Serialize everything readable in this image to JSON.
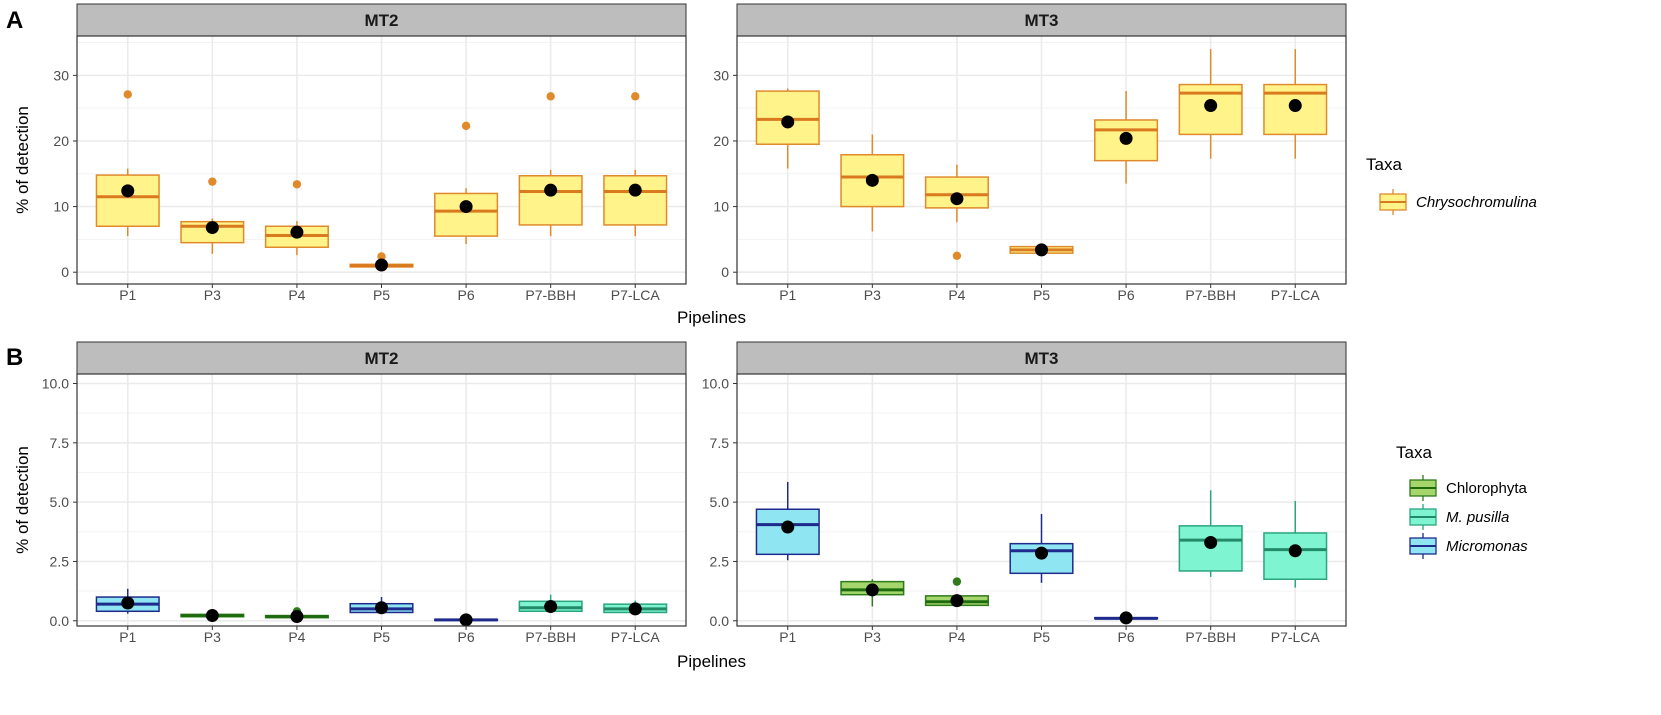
{
  "colors": {
    "chryso_fill": "#fff38a",
    "chryso_line": "#e08a2c",
    "chryso_median": "#d97a1f",
    "chlor_fill": "#a4d66b",
    "chlor_line": "#2f7a1a",
    "chlor_median": "#1e6b10",
    "mpus_fill": "#7ef4d1",
    "mpus_line": "#2aa57f",
    "mpus_median": "#238a68",
    "micro_fill": "#8fe6f2",
    "micro_line": "#1e2a8c",
    "micro_median": "#1e2a8c",
    "strip_bg": "#bdbdbd",
    "grid": "#ebebeb",
    "mean_dot": "#000000"
  },
  "x_label": "Pipelines",
  "y_label": "% of detection",
  "chart_data": [
    {
      "type": "boxplot",
      "panel": "A",
      "facets": [
        "MT2",
        "MT3"
      ],
      "categories": [
        "P1",
        "P3",
        "P4",
        "P5",
        "P6",
        "P7-BBH",
        "P7-LCA"
      ],
      "xlabel": "Pipelines",
      "ylabel": "% of detection",
      "ylim": [
        -1.8,
        36
      ],
      "yticks": [
        0,
        10,
        20,
        30
      ],
      "legend": {
        "title": "Taxa",
        "entries": [
          {
            "key": "chryso",
            "label": "Chrysochromulina",
            "italic": true
          }
        ]
      },
      "boxes": [
        {
          "facet": 0,
          "cat": 0,
          "taxon": "chryso",
          "lower_whisker": 5.5,
          "q1": 7,
          "median": 11.5,
          "q3": 14.8,
          "upper_whisker": 15.8,
          "mean": 12.4,
          "outliers": [
            27.1
          ]
        },
        {
          "facet": 0,
          "cat": 1,
          "taxon": "chryso",
          "lower_whisker": 2.8,
          "q1": 4.5,
          "median": 7,
          "q3": 7.7,
          "upper_whisker": 8.2,
          "mean": 6.8,
          "outliers": [
            13.8
          ]
        },
        {
          "facet": 0,
          "cat": 2,
          "taxon": "chryso",
          "lower_whisker": 2.6,
          "q1": 3.8,
          "median": 5.6,
          "q3": 7,
          "upper_whisker": 7.8,
          "mean": 6.1,
          "outliers": [
            13.4
          ]
        },
        {
          "facet": 0,
          "cat": 3,
          "taxon": "chryso",
          "lower_whisker": 0.6,
          "q1": 0.8,
          "median": 1,
          "q3": 1.2,
          "upper_whisker": 1.3,
          "mean": 1.1,
          "outliers": [
            2.4
          ]
        },
        {
          "facet": 0,
          "cat": 4,
          "taxon": "chryso",
          "lower_whisker": 4.3,
          "q1": 5.5,
          "median": 9.3,
          "q3": 12,
          "upper_whisker": 12.8,
          "mean": 10,
          "outliers": [
            22.3
          ]
        },
        {
          "facet": 0,
          "cat": 5,
          "taxon": "chryso",
          "lower_whisker": 5.5,
          "q1": 7.2,
          "median": 12.3,
          "q3": 14.7,
          "upper_whisker": 15.6,
          "mean": 12.5,
          "outliers": [
            26.8
          ]
        },
        {
          "facet": 0,
          "cat": 6,
          "taxon": "chryso",
          "lower_whisker": 5.5,
          "q1": 7.2,
          "median": 12.3,
          "q3": 14.7,
          "upper_whisker": 15.6,
          "mean": 12.5,
          "outliers": [
            26.8
          ]
        },
        {
          "facet": 1,
          "cat": 0,
          "taxon": "chryso",
          "lower_whisker": 15.8,
          "q1": 19.5,
          "median": 23.3,
          "q3": 27.6,
          "upper_whisker": 28,
          "mean": 22.9,
          "outliers": []
        },
        {
          "facet": 1,
          "cat": 1,
          "taxon": "chryso",
          "lower_whisker": 6.2,
          "q1": 10,
          "median": 14.5,
          "q3": 17.9,
          "upper_whisker": 21,
          "mean": 14,
          "outliers": []
        },
        {
          "facet": 1,
          "cat": 2,
          "taxon": "chryso",
          "lower_whisker": 7.6,
          "q1": 9.8,
          "median": 11.8,
          "q3": 14.5,
          "upper_whisker": 16.4,
          "mean": 11.2,
          "outliers": [
            2.5
          ]
        },
        {
          "facet": 1,
          "cat": 3,
          "taxon": "chryso",
          "lower_whisker": 2.8,
          "q1": 2.9,
          "median": 3.4,
          "q3": 3.9,
          "upper_whisker": 4,
          "mean": 3.4,
          "outliers": []
        },
        {
          "facet": 1,
          "cat": 4,
          "taxon": "chryso",
          "lower_whisker": 13.5,
          "q1": 17,
          "median": 21.7,
          "q3": 23.2,
          "upper_whisker": 27.6,
          "mean": 20.4,
          "outliers": []
        },
        {
          "facet": 1,
          "cat": 5,
          "taxon": "chryso",
          "lower_whisker": 17.3,
          "q1": 21,
          "median": 27.3,
          "q3": 28.6,
          "upper_whisker": 34,
          "mean": 25.4,
          "outliers": []
        },
        {
          "facet": 1,
          "cat": 6,
          "taxon": "chryso",
          "lower_whisker": 17.3,
          "q1": 21,
          "median": 27.3,
          "q3": 28.6,
          "upper_whisker": 34,
          "mean": 25.4,
          "outliers": []
        }
      ]
    },
    {
      "type": "boxplot",
      "panel": "B",
      "facets": [
        "MT2",
        "MT3"
      ],
      "categories": [
        "P1",
        "P3",
        "P4",
        "P5",
        "P6",
        "P7-BBH",
        "P7-LCA"
      ],
      "xlabel": "Pipelines",
      "ylabel": "% of detection",
      "ylim": [
        -0.22,
        10.4
      ],
      "yticks": [
        0.0,
        2.5,
        5.0,
        7.5,
        10.0
      ],
      "yticklabels": [
        "0.0",
        "2.5",
        "5.0",
        "7.5",
        "10.0"
      ],
      "legend": {
        "title": "Taxa",
        "entries": [
          {
            "key": "chlor",
            "label": "Chlorophyta",
            "italic": false
          },
          {
            "key": "mpus",
            "label": "M. pusilla",
            "italic": true
          },
          {
            "key": "micro",
            "label": "Micromonas",
            "italic": true
          }
        ]
      },
      "boxes": [
        {
          "facet": 0,
          "cat": 0,
          "taxon": "micro",
          "lower_whisker": 0.3,
          "q1": 0.4,
          "median": 0.7,
          "q3": 1.0,
          "upper_whisker": 1.35,
          "mean": 0.75,
          "outliers": []
        },
        {
          "facet": 0,
          "cat": 1,
          "taxon": "chlor",
          "lower_whisker": 0.15,
          "q1": 0.17,
          "median": 0.22,
          "q3": 0.27,
          "upper_whisker": 0.3,
          "mean": 0.22,
          "outliers": []
        },
        {
          "facet": 0,
          "cat": 2,
          "taxon": "chlor",
          "lower_whisker": 0.1,
          "q1": 0.13,
          "median": 0.18,
          "q3": 0.22,
          "upper_whisker": 0.26,
          "mean": 0.18,
          "outliers": [
            0.4
          ]
        },
        {
          "facet": 0,
          "cat": 3,
          "taxon": "micro",
          "lower_whisker": 0.3,
          "q1": 0.35,
          "median": 0.5,
          "q3": 0.72,
          "upper_whisker": 1.0,
          "mean": 0.55,
          "outliers": []
        },
        {
          "facet": 0,
          "cat": 4,
          "taxon": "micro",
          "lower_whisker": 0.0,
          "q1": 0.02,
          "median": 0.04,
          "q3": 0.06,
          "upper_whisker": 0.08,
          "mean": 0.04,
          "outliers": []
        },
        {
          "facet": 0,
          "cat": 5,
          "taxon": "mpus",
          "lower_whisker": 0.35,
          "q1": 0.4,
          "median": 0.55,
          "q3": 0.82,
          "upper_whisker": 1.1,
          "mean": 0.6,
          "outliers": []
        },
        {
          "facet": 0,
          "cat": 6,
          "taxon": "mpus",
          "lower_whisker": 0.3,
          "q1": 0.35,
          "median": 0.5,
          "q3": 0.7,
          "upper_whisker": 0.85,
          "mean": 0.5,
          "outliers": []
        },
        {
          "facet": 1,
          "cat": 0,
          "taxon": "micro",
          "lower_whisker": 2.55,
          "q1": 2.8,
          "median": 4.05,
          "q3": 4.7,
          "upper_whisker": 5.85,
          "mean": 3.95,
          "outliers": []
        },
        {
          "facet": 1,
          "cat": 1,
          "taxon": "chlor",
          "lower_whisker": 0.6,
          "q1": 1.1,
          "median": 1.3,
          "q3": 1.65,
          "upper_whisker": 1.75,
          "mean": 1.3,
          "outliers": []
        },
        {
          "facet": 1,
          "cat": 2,
          "taxon": "chlor",
          "lower_whisker": 0.65,
          "q1": 0.65,
          "median": 0.8,
          "q3": 1.05,
          "upper_whisker": 1.05,
          "mean": 0.85,
          "outliers": [
            1.65
          ]
        },
        {
          "facet": 1,
          "cat": 3,
          "taxon": "micro",
          "lower_whisker": 1.6,
          "q1": 2.0,
          "median": 2.95,
          "q3": 3.25,
          "upper_whisker": 4.5,
          "mean": 2.85,
          "outliers": []
        },
        {
          "facet": 1,
          "cat": 4,
          "taxon": "micro",
          "lower_whisker": 0.08,
          "q1": 0.09,
          "median": 0.1,
          "q3": 0.13,
          "upper_whisker": 0.15,
          "mean": 0.12,
          "outliers": []
        },
        {
          "facet": 1,
          "cat": 5,
          "taxon": "mpus",
          "lower_whisker": 1.85,
          "q1": 2.1,
          "median": 3.4,
          "q3": 4.0,
          "upper_whisker": 5.5,
          "mean": 3.3,
          "outliers": []
        },
        {
          "facet": 1,
          "cat": 6,
          "taxon": "mpus",
          "lower_whisker": 1.4,
          "q1": 1.75,
          "median": 3.0,
          "q3": 3.7,
          "upper_whisker": 5.05,
          "mean": 2.95,
          "outliers": []
        }
      ]
    }
  ]
}
